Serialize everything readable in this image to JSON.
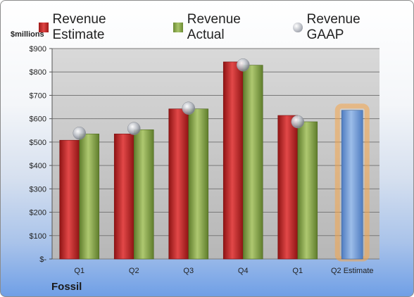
{
  "chart_data": {
    "type": "bar",
    "unit_label": "$millions",
    "company": "Fossil",
    "categories": [
      "Q1",
      "Q2",
      "Q3",
      "Q4",
      "Q1",
      "Q2 Estimate"
    ],
    "series": [
      {
        "name": "Revenue Estimate",
        "color": "#c42525",
        "values": [
          508,
          535,
          642,
          843,
          614,
          null
        ]
      },
      {
        "name": "Revenue Actual",
        "color": "#8aaa4a",
        "values": [
          535,
          553,
          642,
          829,
          587,
          null
        ]
      },
      {
        "name": "Revenue GAAP",
        "color": "#a4a8b0",
        "values": [
          538,
          558,
          645,
          830,
          587,
          null
        ]
      }
    ],
    "estimate_bar": {
      "category": "Q2 Estimate",
      "value": 636,
      "color": "#6f9bd8",
      "highlight": "#f5a54a"
    },
    "ylim": [
      0,
      900
    ],
    "yticks": [
      {
        "value": 0,
        "label": "$-"
      },
      {
        "value": 100,
        "label": "$100"
      },
      {
        "value": 200,
        "label": "$200"
      },
      {
        "value": 300,
        "label": "$300"
      },
      {
        "value": 400,
        "label": "$400"
      },
      {
        "value": 500,
        "label": "$500"
      },
      {
        "value": 600,
        "label": "$600"
      },
      {
        "value": 700,
        "label": "$700"
      },
      {
        "value": 800,
        "label": "$800"
      },
      {
        "value": 900,
        "label": "$900"
      }
    ],
    "grid": true,
    "legend_position": "top"
  }
}
